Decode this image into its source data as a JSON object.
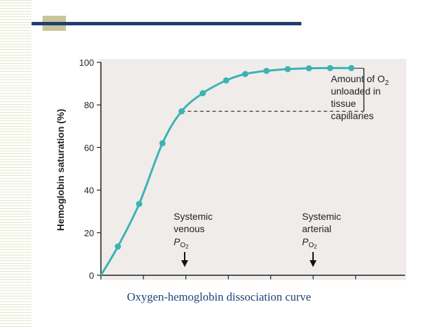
{
  "slide": {
    "caption": "Oxygen-hemoglobin dissociation curve",
    "accent_color": "#1f3f6e"
  },
  "chart_data": {
    "type": "line",
    "title": "",
    "ylabel": "Hemoglobin saturation (%)",
    "xlabel": "",
    "ylim": [
      0,
      100
    ],
    "xlim": [
      0,
      120
    ],
    "yticks": [
      "0",
      "20",
      "40",
      "60",
      "80",
      "100"
    ],
    "x_tick_positions": [
      0,
      20,
      40,
      60,
      80,
      100,
      120
    ],
    "grid": false,
    "line_color": "#3bb3b3",
    "series": [
      {
        "x": [
          8,
          18,
          29,
          38,
          48,
          59,
          68,
          78,
          88,
          98,
          108,
          118
        ],
        "y": [
          13.5,
          33.5,
          62,
          77,
          85.5,
          91.5,
          94.5,
          96,
          96.8,
          97.2,
          97.3,
          97.3
        ]
      }
    ],
    "annotations": {
      "bracket_label": [
        "Amount of O",
        "2",
        " unloaded in",
        "tissue",
        "capillaries"
      ],
      "venous": {
        "line1": "Systemic",
        "line2": "venous",
        "p": "P",
        "sub": "O",
        "subsub": "2"
      },
      "arterial": {
        "line1": "Systemic",
        "line2": "arterial",
        "p": "P",
        "sub": "O",
        "subsub": "2"
      }
    }
  }
}
